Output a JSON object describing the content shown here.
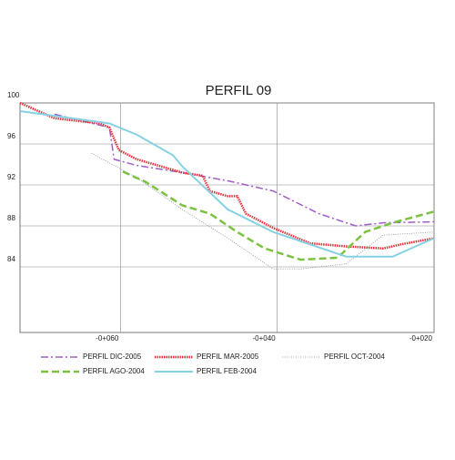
{
  "chart_data": {
    "type": "line",
    "title": "PERFIL 09",
    "xlim": [
      -72.8,
      -20
    ],
    "ylim": [
      77.6,
      100
    ],
    "xticks": [
      {
        "value": -60,
        "label": "-0+060"
      },
      {
        "value": -40,
        "label": "-0+040"
      },
      {
        "value": -20,
        "label": "-0+020"
      }
    ],
    "yticks": [
      84,
      88,
      92,
      96,
      100
    ],
    "grid": true,
    "legend": "bottom",
    "series": [
      {
        "name": "PERFIL DIC-2005",
        "color": "#a05cc8",
        "style": "dashdot",
        "x": [
          -68.4,
          -61.4,
          -60.8,
          -57.9,
          -52.1,
          -46.3,
          -40.5,
          -34.7,
          -30.0,
          -26.5,
          -20
        ],
        "values": [
          98.9,
          97.6,
          94.5,
          93.9,
          93.2,
          92.4,
          91.4,
          89.2,
          88.0,
          88.3,
          88.4
        ]
      },
      {
        "name": "PERFIL MAR-2005",
        "color": "#e8303a",
        "style": "dotted-thick",
        "x": [
          -72.8,
          -68.4,
          -62.6,
          -61.4,
          -60.2,
          -57.9,
          -52.1,
          -49.5,
          -48.6,
          -46.3,
          -45.1,
          -44.0,
          -40.5,
          -35.8,
          -31.2,
          -26.5,
          -24.2,
          -20
        ],
        "values": [
          100,
          98.5,
          98.0,
          97.6,
          95.4,
          94.5,
          93.2,
          92.9,
          91.4,
          90.9,
          90.9,
          89.2,
          87.8,
          86.3,
          86.0,
          85.8,
          86.2,
          86.8
        ]
      },
      {
        "name": "PERFIL OCT-2004",
        "color": "#8a8a9a",
        "style": "dotted",
        "x": [
          -63.7,
          -57.9,
          -52.1,
          -46.3,
          -40.5,
          -37.0,
          -31.2,
          -26.5,
          -20
        ],
        "values": [
          95.1,
          92.7,
          89.6,
          86.8,
          83.8,
          83.8,
          84.3,
          87.1,
          87.4
        ]
      },
      {
        "name": "PERFIL AGO-2004",
        "color": "#7cc242",
        "style": "dashed",
        "x": [
          -59.7,
          -56.8,
          -52.1,
          -48.6,
          -45.1,
          -41.6,
          -37.0,
          -32.3,
          -28.8,
          -25.3,
          -20
        ],
        "values": [
          93.3,
          92.3,
          90.0,
          89.2,
          87.4,
          85.8,
          84.7,
          84.9,
          87.4,
          88.3,
          89.4
        ]
      },
      {
        "name": "PERFIL FEB-2004",
        "color": "#86d0e4",
        "style": "solid",
        "x": [
          -72.8,
          -61.4,
          -57.9,
          -53.3,
          -52.1,
          -46.3,
          -40.5,
          -31.2,
          -25.3,
          -20
        ],
        "values": [
          99.2,
          98.0,
          96.9,
          94.9,
          93.8,
          89.6,
          87.4,
          85.0,
          85.0,
          86.8
        ]
      }
    ]
  }
}
